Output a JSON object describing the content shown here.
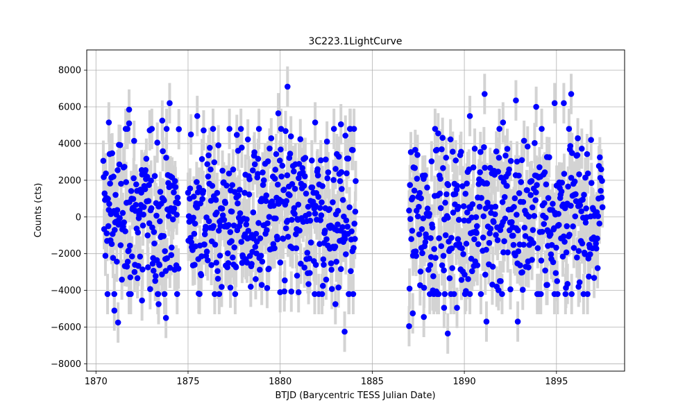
{
  "chart_data": {
    "type": "scatter",
    "title": "3C223.1LightCurve",
    "xlabel": "BTJD (Barycentric TESS Julian Date)",
    "ylabel": "Counts (cts)",
    "xlim": [
      1869.5,
      1898.7
    ],
    "ylim": [
      -8400,
      9100
    ],
    "xticks": [
      1870,
      1875,
      1880,
      1885,
      1890,
      1895
    ],
    "yticks": [
      -8000,
      -6000,
      -4000,
      -2000,
      0,
      2000,
      4000,
      6000,
      8000
    ],
    "grid": true,
    "marker_color": "#0000ff",
    "errorbar_color": "#d3d3d3",
    "y_error": 1100,
    "segments": [
      {
        "x_start": 1870.4,
        "x_end": 1874.5,
        "n": 180
      },
      {
        "x_start": 1875.0,
        "x_end": 1884.1,
        "n": 410
      },
      {
        "x_start": 1887.0,
        "x_end": 1897.5,
        "n": 440
      }
    ],
    "highlight_points": [
      {
        "x": 1870.7,
        "y": 5150
      },
      {
        "x": 1871.8,
        "y": 5850
      },
      {
        "x": 1871.8,
        "y": 5100
      },
      {
        "x": 1873.6,
        "y": 5250
      },
      {
        "x": 1874.0,
        "y": 6200
      },
      {
        "x": 1875.5,
        "y": 5500
      },
      {
        "x": 1879.9,
        "y": 5650
      },
      {
        "x": 1880.4,
        "y": 7100
      },
      {
        "x": 1881.9,
        "y": 5150
      },
      {
        "x": 1883.3,
        "y": 5050
      },
      {
        "x": 1890.3,
        "y": 5500
      },
      {
        "x": 1891.1,
        "y": 6700
      },
      {
        "x": 1892.1,
        "y": 5150
      },
      {
        "x": 1892.8,
        "y": 6350
      },
      {
        "x": 1893.9,
        "y": 6000
      },
      {
        "x": 1894.9,
        "y": 6200
      },
      {
        "x": 1895.4,
        "y": 6200
      },
      {
        "x": 1895.8,
        "y": 6700
      },
      {
        "x": 1871.0,
        "y": -5100
      },
      {
        "x": 1871.2,
        "y": -5750
      },
      {
        "x": 1872.5,
        "y": -4550
      },
      {
        "x": 1873.4,
        "y": -4750
      },
      {
        "x": 1873.8,
        "y": -5500
      },
      {
        "x": 1877.3,
        "y": -3850
      },
      {
        "x": 1879.0,
        "y": -3700
      },
      {
        "x": 1880.0,
        "y": -4100
      },
      {
        "x": 1881.0,
        "y": -4100
      },
      {
        "x": 1883.0,
        "y": -4750
      },
      {
        "x": 1883.5,
        "y": -6250
      },
      {
        "x": 1887.0,
        "y": -5950
      },
      {
        "x": 1887.2,
        "y": -5250
      },
      {
        "x": 1887.8,
        "y": -5450
      },
      {
        "x": 1888.9,
        "y": -4950
      },
      {
        "x": 1889.1,
        "y": -6350
      },
      {
        "x": 1889.6,
        "y": -4950
      },
      {
        "x": 1891.2,
        "y": -5700
      },
      {
        "x": 1892.9,
        "y": -5700
      },
      {
        "x": 1894.5,
        "y": -3700
      },
      {
        "x": 1895.6,
        "y": -3650
      },
      {
        "x": 1896.2,
        "y": -3800
      }
    ]
  }
}
